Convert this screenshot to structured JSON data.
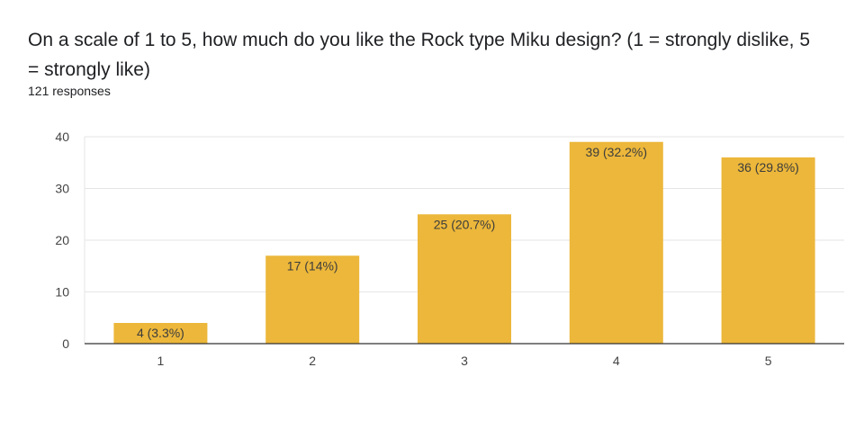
{
  "header": {
    "title": "On a scale of 1 to 5, how much do you like the Rock type Miku design? (1 = strongly dislike, 5 = strongly like)",
    "responses": "121 responses"
  },
  "colors": {
    "bar": "#ecb73a",
    "grid": "#e6e6e6",
    "axis": "#333333"
  },
  "chart_data": {
    "type": "bar",
    "title": "On a scale of 1 to 5, how much do you like the Rock type Miku design? (1 = strongly dislike, 5 = strongly like)",
    "categories": [
      "1",
      "2",
      "3",
      "4",
      "5"
    ],
    "values": [
      4,
      17,
      25,
      39,
      36
    ],
    "data_labels": [
      "4 (3.3%)",
      "17 (14%)",
      "25 (20.7%)",
      "39 (32.2%)",
      "36 (29.8%)"
    ],
    "y_ticks": [
      "0",
      "10",
      "20",
      "30",
      "40"
    ],
    "ylim": [
      0,
      40
    ],
    "grid": true,
    "legend": "none"
  }
}
